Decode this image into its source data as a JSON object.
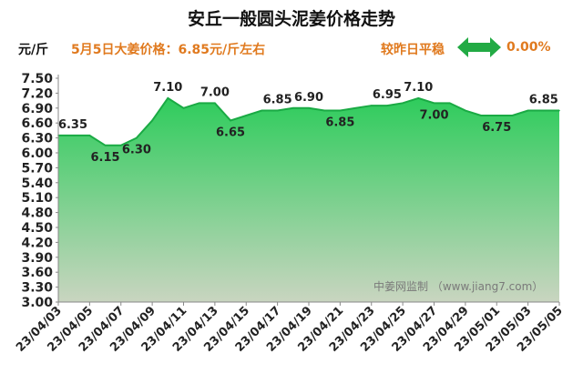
{
  "header": {
    "title": "安丘一般圆头泥姜价格走势",
    "unit": "元/斤",
    "headline": "5月5日大姜价格：6.85元/斤左右",
    "compare_label": "较昨日平稳",
    "change_value": "0.00%"
  },
  "watermark": "中姜网监制 （www.jiang7.com）",
  "colors": {
    "accent": "#e07a1f",
    "area_top": "#2ecc5c",
    "area_bottom": "#c9d5c0",
    "line": "#1aaa44",
    "arrow": "#22aa44"
  },
  "icons": {
    "trend": "double-arrow-icon"
  },
  "chart_data": {
    "type": "area",
    "title": "安丘一般圆头泥姜价格走势",
    "ylabel": "元/斤",
    "xlabel": "",
    "ylim": [
      3.0,
      7.5
    ],
    "yticks": [
      "3.00",
      "3.30",
      "3.60",
      "3.90",
      "4.20",
      "4.50",
      "4.80",
      "5.10",
      "5.40",
      "5.70",
      "6.00",
      "6.30",
      "6.60",
      "6.90",
      "7.20",
      "7.50"
    ],
    "x": [
      "23/04/03",
      "23/04/04",
      "23/04/05",
      "23/04/06",
      "23/04/07",
      "23/04/08",
      "23/04/09",
      "23/04/10",
      "23/04/11",
      "23/04/12",
      "23/04/13",
      "23/04/14",
      "23/04/15",
      "23/04/16",
      "23/04/17",
      "23/04/18",
      "23/04/19",
      "23/04/20",
      "23/04/21",
      "23/04/22",
      "23/04/23",
      "23/04/24",
      "23/04/25",
      "23/04/26",
      "23/04/27",
      "23/04/28",
      "23/04/29",
      "23/04/30",
      "23/05/01",
      "23/05/02",
      "23/05/03",
      "23/05/04",
      "23/05/05"
    ],
    "values": [
      6.35,
      6.35,
      6.35,
      6.15,
      6.15,
      6.3,
      6.65,
      7.1,
      6.9,
      7.0,
      7.0,
      6.65,
      6.75,
      6.85,
      6.85,
      6.9,
      6.9,
      6.85,
      6.85,
      6.9,
      6.95,
      6.95,
      7.0,
      7.1,
      7.0,
      7.0,
      6.85,
      6.75,
      6.75,
      6.75,
      6.85,
      6.85,
      6.85
    ],
    "xtick_labels": [
      "23/04/03",
      "23/04/05",
      "23/04/07",
      "23/04/09",
      "23/04/11",
      "23/04/13",
      "23/04/15",
      "23/04/17",
      "23/04/19",
      "23/04/21",
      "23/04/23",
      "23/04/25",
      "23/04/27",
      "23/04/29",
      "23/05/01",
      "23/05/03",
      "23/05/05"
    ],
    "data_labels": [
      {
        "x": "23/04/03",
        "text": "6.35"
      },
      {
        "x": "23/04/06",
        "text": "6.15"
      },
      {
        "x": "23/04/08",
        "text": "6.30"
      },
      {
        "x": "23/04/10",
        "text": "7.10"
      },
      {
        "x": "23/04/13",
        "text": "7.00"
      },
      {
        "x": "23/04/14",
        "text": "6.65"
      },
      {
        "x": "23/04/17",
        "text": "6.85"
      },
      {
        "x": "23/04/19",
        "text": "6.90"
      },
      {
        "x": "23/04/21",
        "text": "6.85"
      },
      {
        "x": "23/04/24",
        "text": "6.95"
      },
      {
        "x": "23/04/26",
        "text": "7.10"
      },
      {
        "x": "23/04/27",
        "text": "7.00"
      },
      {
        "x": "23/05/01",
        "text": "6.75"
      },
      {
        "x": "23/05/04",
        "text": "6.85"
      }
    ],
    "grid": false,
    "legend": "none"
  }
}
